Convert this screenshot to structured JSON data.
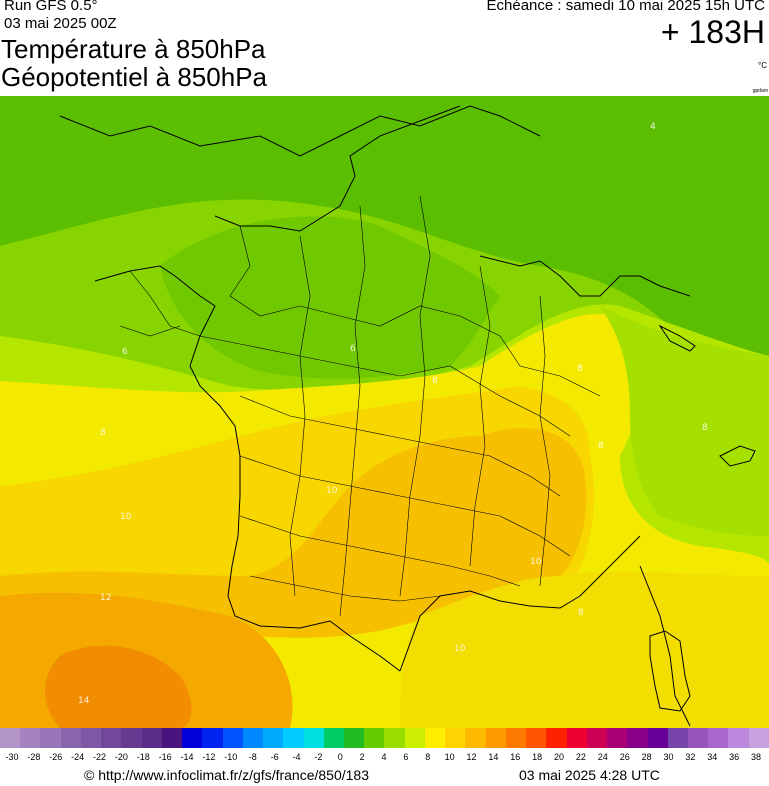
{
  "header": {
    "run": "Run GFS 0.5°",
    "run_date": "03 mai 2025 00Z",
    "title_line1": "Température à 850hPa",
    "title_line2": "Géopotentiel à 850hPa",
    "echeance": "Echéance : samedi 10 mai 2025 15h UTC",
    "hours": "+ 183H",
    "unit": "°C",
    "credit": "gpdam"
  },
  "map": {
    "contour_labels": [
      "6",
      "6",
      "8",
      "8",
      "8",
      "8",
      "10",
      "10",
      "10",
      "10",
      "12",
      "14",
      "8",
      "8",
      "4"
    ]
  },
  "scale": {
    "values": [
      "-30",
      "-28",
      "-26",
      "-24",
      "-22",
      "-20",
      "-18",
      "-16",
      "-14",
      "-12",
      "-10",
      "-8",
      "-6",
      "-4",
      "-2",
      "0",
      "2",
      "4",
      "6",
      "8",
      "10",
      "12",
      "14",
      "16",
      "18",
      "20",
      "22",
      "24",
      "26",
      "28",
      "30",
      "32",
      "34",
      "36",
      "38"
    ],
    "colors": [
      "#b394c8",
      "#a582c0",
      "#9775b6",
      "#8a66ad",
      "#7e58a4",
      "#71489b",
      "#663a91",
      "#5b2c88",
      "#4a147e",
      "#0000d8",
      "#0022ee",
      "#0055ff",
      "#0088ff",
      "#00aaff",
      "#00ccff",
      "#00e0e0",
      "#00cc66",
      "#22bb22",
      "#66cc00",
      "#99dd00",
      "#ccee00",
      "#ffee00",
      "#ffd400",
      "#ffb800",
      "#ff9900",
      "#ff7a00",
      "#ff5500",
      "#ff2200",
      "#ee0033",
      "#cc0055",
      "#aa0077",
      "#880088",
      "#660099",
      "#7744aa",
      "#9955bb",
      "#aa66cc",
      "#bb88dd",
      "#c7a0e0"
    ]
  },
  "footer": {
    "copyright": "© http://www.infoclimat.fr/z/gfs/france/850/183",
    "date": "03 mai 2025  4:28 UTC"
  }
}
